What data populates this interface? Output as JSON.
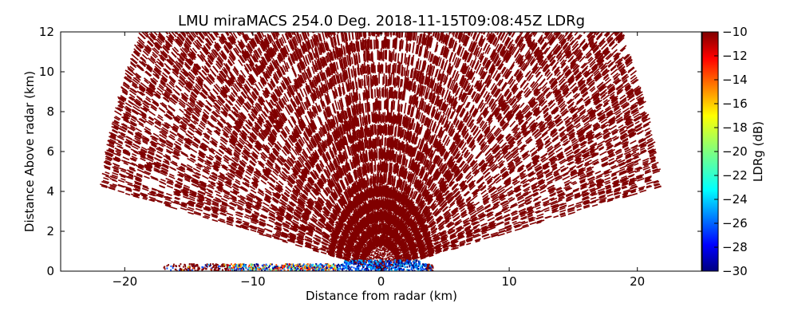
{
  "chart_data": {
    "type": "scatter",
    "title": "LMU miraMACS 254.0 Deg. 2018-11-15T09:08:45Z  LDRg",
    "xlabel": "Distance from radar (km)",
    "ylabel": "Distance Above radar  (km)",
    "xlim": [
      -25,
      25
    ],
    "ylim": [
      0,
      12
    ],
    "xticks": [
      -20,
      -10,
      0,
      10,
      20
    ],
    "yticks": [
      0,
      2,
      4,
      6,
      8,
      10,
      12
    ],
    "grid": false,
    "colorbar": {
      "label": "LDRg (dB)",
      "range": [
        -30,
        -10
      ],
      "ticks": [
        -10,
        -12,
        -14,
        -16,
        -18,
        -20,
        -22,
        -24,
        -26,
        -28,
        -30
      ],
      "colormap": "jet"
    },
    "elevation_span_deg": [
      11,
      169
    ],
    "max_range_km": 22,
    "dominant_value_db": -10,
    "near_surface_values_db": [
      -30,
      -26,
      -24,
      -20,
      -16,
      -14,
      -12
    ],
    "colors": {
      "dominant": "#800000",
      "low": "#00008f",
      "high": "#800000"
    }
  }
}
